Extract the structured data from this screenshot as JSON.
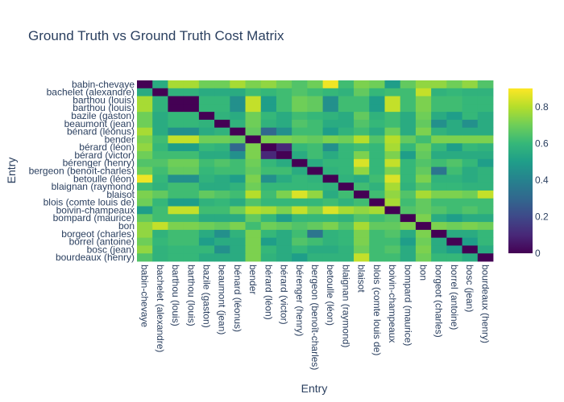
{
  "chart_data": {
    "type": "heatmap",
    "title": "Ground Truth vs Ground Truth Cost Matrix",
    "xlabel": "Entry",
    "ylabel": "Entry",
    "colorscale": "Viridis",
    "zmin": 0,
    "zmax": 0.9,
    "colorbar_ticks": [
      0,
      0.2,
      0.4,
      0.6,
      0.8
    ],
    "x": [
      "babin-chevaye",
      "bachelet (alexandre)",
      "barthou (louis)",
      "barthou (louis)",
      "bazile (gaston)",
      "beaumont (jean)",
      "bénard (léonus)",
      "bender",
      "bérard (léon)",
      "bérard (victor)",
      "bérenger (henry)",
      "bergeon (benoît-charles)",
      "betoulle (léon)",
      "blaignan (raymond)",
      "blaisot",
      "blois (comte louis de)",
      "boivin-champeaux",
      "bompard (maurice)",
      "bon",
      "borgeot (charles)",
      "borrel (antoine)",
      "bosc (jean)",
      "bourdeaux (henry)"
    ],
    "y": [
      "babin-chevaye",
      "bachelet (alexandre)",
      "barthou (louis)",
      "barthou (louis)",
      "bazile (gaston)",
      "beaumont (jean)",
      "bénard (léonus)",
      "bender",
      "bérard (léon)",
      "bérard (victor)",
      "bérenger (henry)",
      "bergeon (benoît-charles)",
      "betoulle (léon)",
      "blaignan (raymond)",
      "blaisot",
      "blois (comte louis de)",
      "boivin-champeaux",
      "bompard (maurice)",
      "bon",
      "borgeot (charles)",
      "borrel (antoine)",
      "bosc (jean)",
      "bourdeaux (henry)"
    ],
    "z": [
      [
        0.0,
        0.55,
        0.78,
        0.78,
        0.7,
        0.7,
        0.78,
        0.72,
        0.75,
        0.7,
        0.65,
        0.7,
        0.88,
        0.62,
        0.72,
        0.7,
        0.5,
        0.68,
        0.75,
        0.75,
        0.7,
        0.75,
        0.65
      ],
      [
        0.55,
        0.0,
        0.58,
        0.58,
        0.55,
        0.55,
        0.55,
        0.62,
        0.6,
        0.62,
        0.65,
        0.62,
        0.6,
        0.58,
        0.68,
        0.6,
        0.62,
        0.62,
        0.82,
        0.58,
        0.6,
        0.58,
        0.58
      ],
      [
        0.78,
        0.58,
        0.0,
        0.0,
        0.6,
        0.6,
        0.45,
        0.82,
        0.5,
        0.62,
        0.7,
        0.68,
        0.45,
        0.62,
        0.62,
        0.5,
        0.82,
        0.62,
        0.72,
        0.62,
        0.62,
        0.6,
        0.6
      ],
      [
        0.78,
        0.58,
        0.0,
        0.0,
        0.6,
        0.6,
        0.45,
        0.82,
        0.5,
        0.62,
        0.7,
        0.68,
        0.45,
        0.62,
        0.62,
        0.5,
        0.82,
        0.62,
        0.72,
        0.62,
        0.62,
        0.6,
        0.6
      ],
      [
        0.7,
        0.55,
        0.6,
        0.6,
        0.0,
        0.58,
        0.55,
        0.7,
        0.6,
        0.55,
        0.62,
        0.6,
        0.58,
        0.55,
        0.68,
        0.58,
        0.62,
        0.55,
        0.7,
        0.55,
        0.5,
        0.6,
        0.55
      ],
      [
        0.7,
        0.55,
        0.6,
        0.6,
        0.58,
        0.0,
        0.58,
        0.7,
        0.58,
        0.55,
        0.65,
        0.62,
        0.55,
        0.55,
        0.65,
        0.6,
        0.62,
        0.55,
        0.68,
        0.45,
        0.55,
        0.45,
        0.55
      ],
      [
        0.78,
        0.55,
        0.45,
        0.45,
        0.55,
        0.58,
        0.0,
        0.68,
        0.3,
        0.45,
        0.62,
        0.62,
        0.5,
        0.58,
        0.62,
        0.55,
        0.7,
        0.55,
        0.72,
        0.58,
        0.55,
        0.55,
        0.55
      ],
      [
        0.72,
        0.62,
        0.82,
        0.82,
        0.7,
        0.7,
        0.68,
        0.0,
        0.72,
        0.72,
        0.7,
        0.68,
        0.72,
        0.7,
        0.8,
        0.65,
        0.8,
        0.68,
        0.62,
        0.72,
        0.72,
        0.72,
        0.72
      ],
      [
        0.75,
        0.6,
        0.5,
        0.5,
        0.6,
        0.58,
        0.3,
        0.72,
        0.0,
        0.1,
        0.6,
        0.62,
        0.45,
        0.6,
        0.62,
        0.6,
        0.78,
        0.6,
        0.7,
        0.6,
        0.5,
        0.6,
        0.58
      ],
      [
        0.7,
        0.62,
        0.62,
        0.62,
        0.55,
        0.55,
        0.45,
        0.72,
        0.1,
        0.0,
        0.55,
        0.62,
        0.55,
        0.6,
        0.72,
        0.6,
        0.72,
        0.5,
        0.68,
        0.55,
        0.55,
        0.55,
        0.55
      ],
      [
        0.65,
        0.65,
        0.7,
        0.7,
        0.62,
        0.65,
        0.62,
        0.7,
        0.6,
        0.55,
        0.0,
        0.55,
        0.6,
        0.6,
        0.85,
        0.6,
        0.82,
        0.6,
        0.65,
        0.62,
        0.65,
        0.6,
        0.5
      ],
      [
        0.7,
        0.62,
        0.68,
        0.68,
        0.6,
        0.62,
        0.62,
        0.68,
        0.62,
        0.62,
        0.55,
        0.0,
        0.58,
        0.6,
        0.75,
        0.6,
        0.72,
        0.6,
        0.68,
        0.35,
        0.62,
        0.55,
        0.58
      ],
      [
        0.88,
        0.6,
        0.45,
        0.45,
        0.58,
        0.55,
        0.5,
        0.72,
        0.45,
        0.55,
        0.6,
        0.58,
        0.0,
        0.58,
        0.55,
        0.62,
        0.85,
        0.6,
        0.72,
        0.58,
        0.58,
        0.55,
        0.58
      ],
      [
        0.62,
        0.58,
        0.62,
        0.62,
        0.55,
        0.55,
        0.58,
        0.7,
        0.6,
        0.6,
        0.6,
        0.6,
        0.58,
        0.0,
        0.62,
        0.58,
        0.78,
        0.58,
        0.65,
        0.6,
        0.6,
        0.58,
        0.58
      ],
      [
        0.72,
        0.68,
        0.62,
        0.62,
        0.68,
        0.65,
        0.62,
        0.8,
        0.62,
        0.72,
        0.85,
        0.75,
        0.55,
        0.62,
        0.0,
        0.62,
        0.75,
        0.65,
        0.78,
        0.72,
        0.72,
        0.7,
        0.82
      ],
      [
        0.7,
        0.6,
        0.5,
        0.5,
        0.58,
        0.6,
        0.55,
        0.65,
        0.6,
        0.6,
        0.6,
        0.6,
        0.62,
        0.58,
        0.62,
        0.0,
        0.78,
        0.62,
        0.68,
        0.62,
        0.62,
        0.62,
        0.62
      ],
      [
        0.5,
        0.62,
        0.82,
        0.82,
        0.62,
        0.62,
        0.7,
        0.8,
        0.78,
        0.72,
        0.82,
        0.72,
        0.85,
        0.78,
        0.75,
        0.78,
        0.0,
        0.65,
        0.68,
        0.65,
        0.62,
        0.65,
        0.62
      ],
      [
        0.68,
        0.62,
        0.62,
        0.62,
        0.55,
        0.55,
        0.55,
        0.68,
        0.6,
        0.5,
        0.6,
        0.6,
        0.6,
        0.58,
        0.65,
        0.62,
        0.65,
        0.0,
        0.72,
        0.55,
        0.5,
        0.55,
        0.55
      ],
      [
        0.75,
        0.82,
        0.72,
        0.72,
        0.7,
        0.68,
        0.72,
        0.62,
        0.7,
        0.68,
        0.65,
        0.68,
        0.72,
        0.65,
        0.78,
        0.68,
        0.68,
        0.72,
        0.0,
        0.72,
        0.7,
        0.72,
        0.7
      ],
      [
        0.75,
        0.58,
        0.62,
        0.62,
        0.55,
        0.45,
        0.58,
        0.72,
        0.6,
        0.55,
        0.62,
        0.35,
        0.58,
        0.6,
        0.72,
        0.62,
        0.65,
        0.55,
        0.72,
        0.0,
        0.55,
        0.55,
        0.6
      ],
      [
        0.7,
        0.6,
        0.62,
        0.62,
        0.5,
        0.55,
        0.55,
        0.72,
        0.5,
        0.55,
        0.65,
        0.62,
        0.58,
        0.6,
        0.72,
        0.62,
        0.62,
        0.5,
        0.7,
        0.55,
        0.0,
        0.5,
        0.6
      ],
      [
        0.75,
        0.58,
        0.6,
        0.6,
        0.6,
        0.45,
        0.55,
        0.72,
        0.6,
        0.55,
        0.6,
        0.55,
        0.55,
        0.58,
        0.7,
        0.62,
        0.65,
        0.55,
        0.72,
        0.55,
        0.5,
        0.0,
        0.55
      ],
      [
        0.65,
        0.58,
        0.6,
        0.6,
        0.55,
        0.55,
        0.55,
        0.72,
        0.58,
        0.55,
        0.5,
        0.58,
        0.58,
        0.58,
        0.82,
        0.62,
        0.62,
        0.55,
        0.7,
        0.6,
        0.6,
        0.55,
        0.0
      ]
    ]
  }
}
